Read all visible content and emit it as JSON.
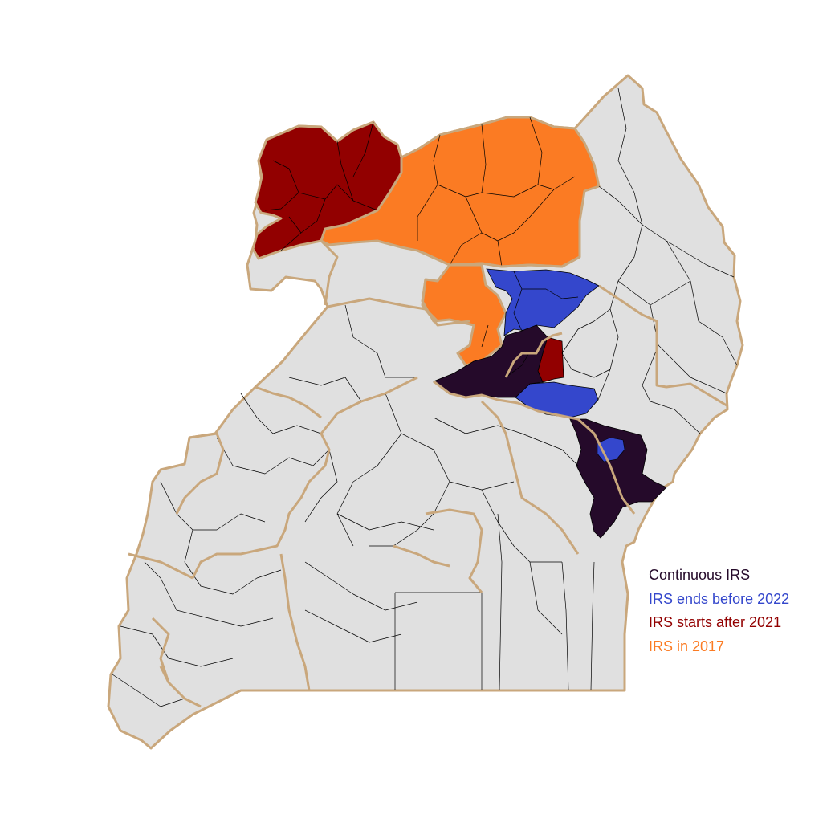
{
  "colors": {
    "background": "#ffffff",
    "land": "#e0e0e0",
    "district_border": "#000000",
    "region_border": "#c9a77c",
    "continuous_irs": "#250a2a",
    "irs_ends_before_2022": "#3447cc",
    "irs_starts_after_2021": "#920000",
    "irs_in_2017": "#fb7b23"
  },
  "legend": {
    "items": [
      {
        "label": "Continuous IRS",
        "color": "#250a2a"
      },
      {
        "label": "IRS ends before 2022",
        "color": "#3447cc"
      },
      {
        "label": "IRS starts after 2021",
        "color": "#920000"
      },
      {
        "label": "IRS in 2017",
        "color": "#fb7b23"
      }
    ]
  }
}
